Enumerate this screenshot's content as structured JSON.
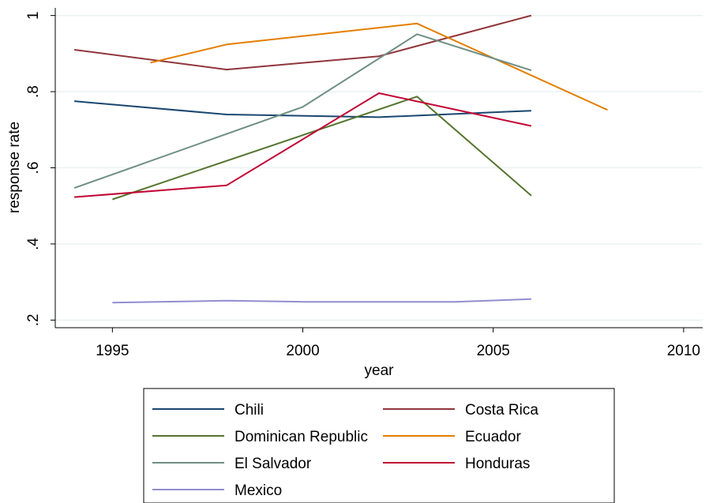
{
  "chart_data": {
    "type": "line",
    "title": "",
    "xlabel": "year",
    "ylabel": "response rate",
    "xlim": [
      1993.5,
      2010.5
    ],
    "ylim": [
      0.18,
      1.02
    ],
    "x_ticks": [
      1995,
      2000,
      2005,
      2010
    ],
    "x_tick_labels": [
      "1995",
      "2000",
      "2005",
      "2010"
    ],
    "y_ticks": [
      0.2,
      0.4,
      0.6,
      0.8,
      1.0
    ],
    "y_tick_labels": [
      ".2",
      ".4",
      ".6",
      ".8",
      "1"
    ],
    "grid": "horizontal",
    "legend_position": "bottom",
    "series": [
      {
        "name": "Chili",
        "color": "#1a476f",
        "x": [
          1994,
          1998,
          2002,
          2006
        ],
        "y": [
          0.775,
          0.74,
          0.733,
          0.75
        ]
      },
      {
        "name": "Costa Rica",
        "color": "#90353b",
        "x": [
          1994,
          1998,
          2002,
          2006
        ],
        "y": [
          0.91,
          0.858,
          0.893,
          1.0
        ]
      },
      {
        "name": "Dominican Republic",
        "color": "#55752f",
        "x": [
          1995,
          2003,
          2006
        ],
        "y": [
          0.517,
          0.787,
          0.527
        ]
      },
      {
        "name": "Ecuador",
        "color": "#e37e00",
        "x": [
          1996,
          1998,
          2003,
          2008
        ],
        "y": [
          0.876,
          0.924,
          0.979,
          0.752
        ]
      },
      {
        "name": "El Salvador",
        "color": "#6e8e84",
        "x": [
          1994,
          2000,
          2003,
          2006
        ],
        "y": [
          0.547,
          0.76,
          0.951,
          0.856
        ]
      },
      {
        "name": "Honduras",
        "color": "#c10534",
        "x": [
          1994,
          1998,
          2002,
          2006
        ],
        "y": [
          0.523,
          0.554,
          0.796,
          0.71
        ]
      },
      {
        "name": "Mexico",
        "color": "#938dd2",
        "x": [
          1995,
          1998,
          2000,
          2004,
          2006
        ],
        "y": [
          0.246,
          0.251,
          0.248,
          0.248,
          0.255
        ]
      }
    ]
  }
}
